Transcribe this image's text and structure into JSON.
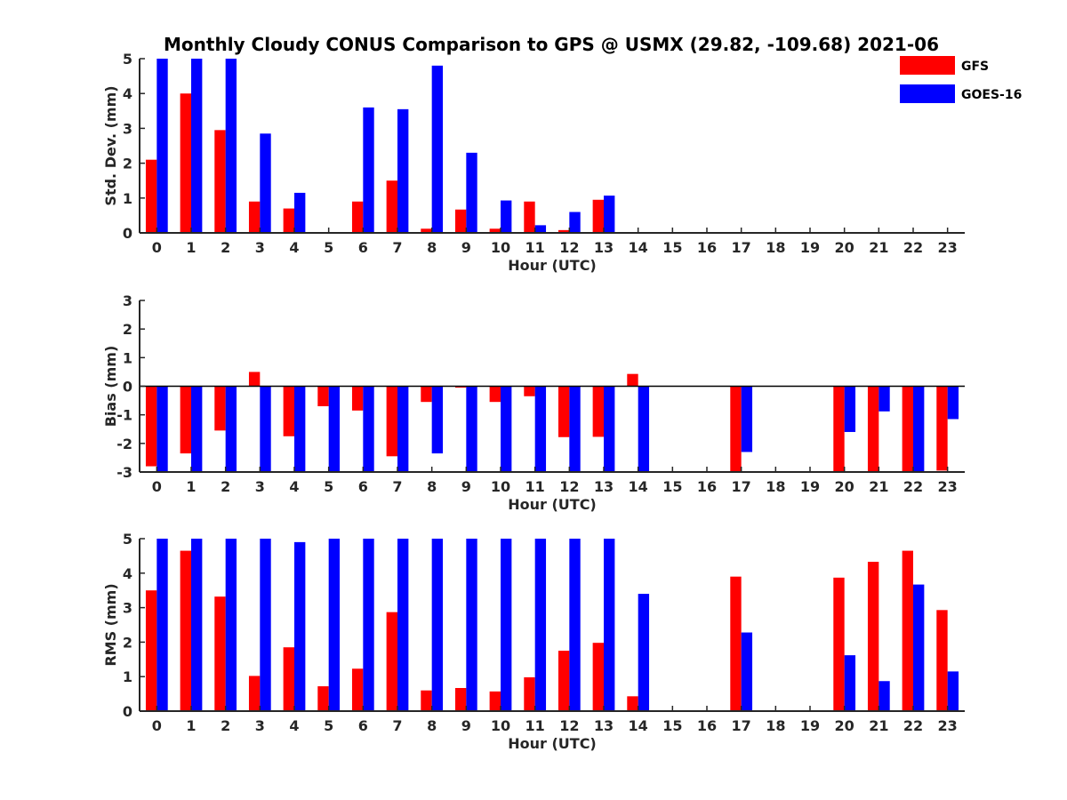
{
  "title": "Monthly Cloudy CONUS Comparison to GPS @ USMX (29.82, -109.68) 2021-06",
  "legend": [
    {
      "name": "GFS",
      "color": "#ff0000"
    },
    {
      "name": "GOES-16",
      "color": "#0000ff"
    }
  ],
  "chart_data": [
    {
      "type": "bar",
      "categories": [
        "0",
        "1",
        "2",
        "3",
        "4",
        "5",
        "6",
        "7",
        "8",
        "9",
        "10",
        "11",
        "12",
        "13",
        "14",
        "15",
        "16",
        "17",
        "18",
        "19",
        "20",
        "21",
        "22",
        "23"
      ],
      "xlabel": "Hour (UTC)",
      "ylabel": "Std. Dev. (mm)",
      "ylim": [
        0,
        5
      ],
      "yticks": [
        "0",
        "1",
        "2",
        "3",
        "4",
        "5"
      ],
      "series": [
        {
          "name": "GFS",
          "color": "#ff0000",
          "values": [
            2.1,
            4.0,
            2.95,
            0.9,
            0.7,
            null,
            0.9,
            1.5,
            0.12,
            0.67,
            0.12,
            0.9,
            0.08,
            0.95,
            null,
            null,
            null,
            null,
            null,
            null,
            null,
            null,
            null,
            null
          ]
        },
        {
          "name": "GOES-16",
          "color": "#0000ff",
          "values": [
            5,
            5,
            5,
            2.85,
            1.15,
            null,
            3.6,
            3.55,
            4.8,
            2.3,
            0.93,
            0.22,
            0.6,
            1.07,
            null,
            null,
            null,
            null,
            null,
            null,
            null,
            null,
            null,
            null
          ]
        }
      ]
    },
    {
      "type": "bar",
      "categories": [
        "0",
        "1",
        "2",
        "3",
        "4",
        "5",
        "6",
        "7",
        "8",
        "9",
        "10",
        "11",
        "12",
        "13",
        "14",
        "15",
        "16",
        "17",
        "18",
        "19",
        "20",
        "21",
        "22",
        "23"
      ],
      "xlabel": "Hour (UTC)",
      "ylabel": "Bias (mm)",
      "ylim": [
        -3,
        3
      ],
      "yticks": [
        "-3",
        "-2",
        "-1",
        "0",
        "1",
        "2",
        "3"
      ],
      "series": [
        {
          "name": "GFS",
          "color": "#ff0000",
          "values": [
            -2.8,
            -2.35,
            -1.55,
            0.5,
            -1.75,
            -0.7,
            -0.85,
            -2.45,
            -0.55,
            -0.05,
            -0.55,
            -0.35,
            -1.78,
            -1.77,
            0.43,
            null,
            null,
            -3,
            null,
            null,
            -3,
            -3,
            -3,
            -2.95
          ]
        },
        {
          "name": "GOES-16",
          "color": "#0000ff",
          "values": [
            -3,
            -3,
            -3,
            -3,
            -3,
            -3,
            -3,
            -3,
            -2.35,
            -3,
            -3,
            -3,
            -3,
            -3,
            -3,
            null,
            null,
            -2.3,
            null,
            null,
            -1.6,
            -0.88,
            -3,
            -1.15
          ]
        }
      ]
    },
    {
      "type": "bar",
      "categories": [
        "0",
        "1",
        "2",
        "3",
        "4",
        "5",
        "6",
        "7",
        "8",
        "9",
        "10",
        "11",
        "12",
        "13",
        "14",
        "15",
        "16",
        "17",
        "18",
        "19",
        "20",
        "21",
        "22",
        "23"
      ],
      "xlabel": "Hour (UTC)",
      "ylabel": "RMS (mm)",
      "ylim": [
        0,
        5
      ],
      "yticks": [
        "0",
        "1",
        "2",
        "3",
        "4",
        "5"
      ],
      "series": [
        {
          "name": "GFS",
          "color": "#ff0000",
          "values": [
            3.5,
            4.65,
            3.32,
            1.02,
            1.85,
            0.72,
            1.23,
            2.87,
            0.6,
            0.67,
            0.57,
            0.98,
            1.75,
            1.98,
            0.43,
            null,
            null,
            3.9,
            null,
            null,
            3.87,
            4.33,
            4.65,
            2.93
          ]
        },
        {
          "name": "GOES-16",
          "color": "#0000ff",
          "values": [
            5,
            5,
            5,
            5,
            4.9,
            5,
            5,
            5,
            5,
            5,
            5,
            5,
            5,
            5,
            3.4,
            null,
            null,
            2.28,
            null,
            null,
            1.62,
            0.87,
            3.67,
            1.15
          ]
        }
      ]
    }
  ]
}
